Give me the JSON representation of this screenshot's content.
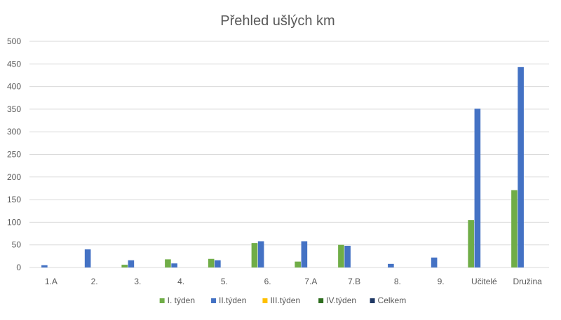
{
  "chart_data": {
    "type": "bar",
    "title": "Přehled ušlých km",
    "xlabel": "",
    "ylabel": "",
    "ylim": [
      0,
      500
    ],
    "yticks": [
      0,
      50,
      100,
      150,
      200,
      250,
      300,
      350,
      400,
      450,
      500
    ],
    "grid": true,
    "legend_position": "bottom",
    "categories": [
      "1.A",
      "2.",
      "3.",
      "4.",
      "5.",
      "6.",
      "7.A",
      "7.B",
      "8.",
      "9.",
      "Učitelé",
      "Družina"
    ],
    "series": [
      {
        "name": "I. týden",
        "color": "#70ad47",
        "values": [
          0,
          0,
          6,
          18,
          19,
          54,
          13,
          50,
          0,
          0,
          105,
          171
        ]
      },
      {
        "name": "II.týden",
        "color": "#4472c4",
        "values": [
          5,
          40,
          16,
          9,
          16,
          58,
          58,
          48,
          8,
          22,
          351,
          443
        ]
      },
      {
        "name": "III.týden",
        "color": "#ffc000",
        "values": [
          0,
          0,
          0,
          0,
          0,
          0,
          0,
          0,
          0,
          0,
          0,
          0
        ]
      },
      {
        "name": "IV.týden",
        "color": "#2e6e1f",
        "values": [
          0,
          0,
          0,
          0,
          0,
          0,
          0,
          0,
          0,
          0,
          0,
          0
        ]
      },
      {
        "name": "Celkem",
        "color": "#1f3864",
        "values": [
          0,
          0,
          0,
          0,
          0,
          0,
          0,
          0,
          0,
          0,
          0,
          0
        ]
      }
    ]
  }
}
